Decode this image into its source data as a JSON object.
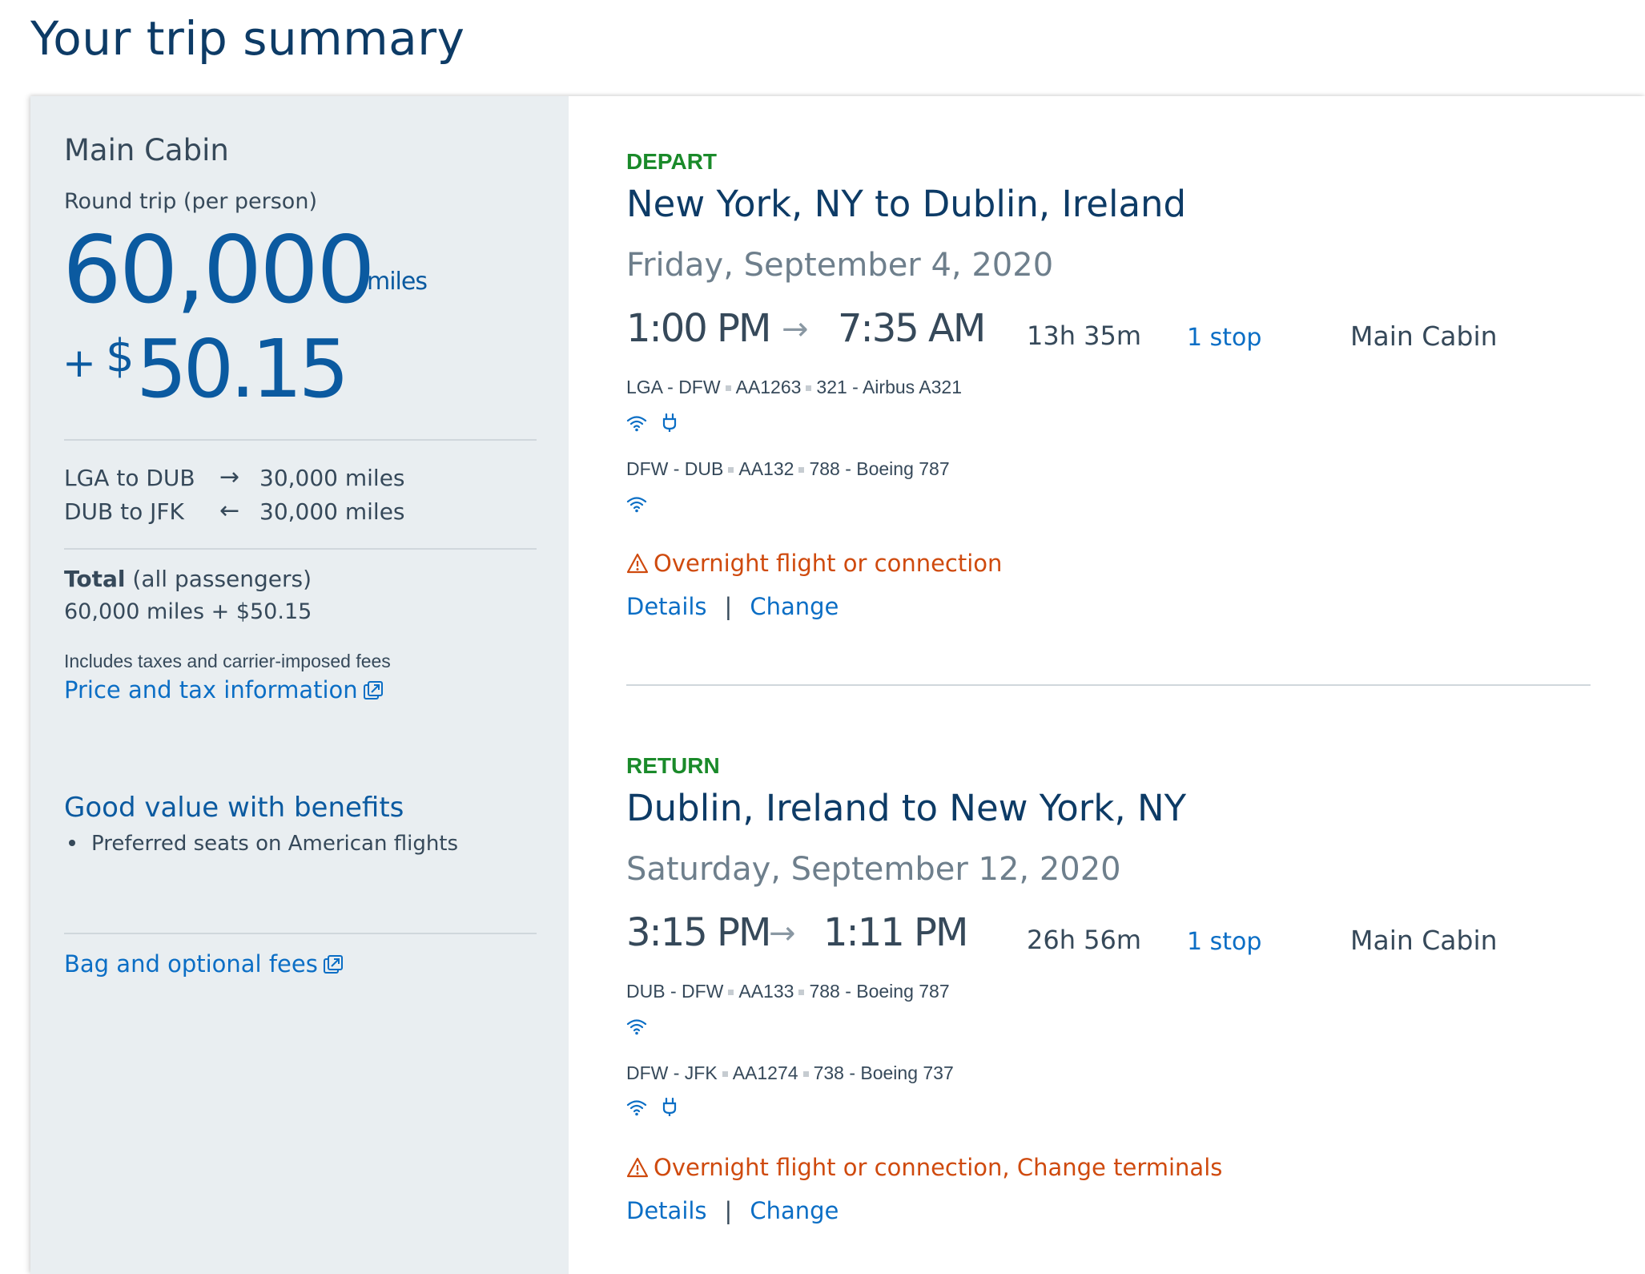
{
  "page_title": "Your trip summary",
  "sidebar": {
    "cabin": "Main Cabin",
    "trip_type": "Round trip (per person)",
    "miles": "60,000",
    "miles_unit": "miles",
    "plus": "+",
    "dollar_sign": "$",
    "cash": "50.15",
    "legs": [
      {
        "route": "LGA to DUB",
        "arrow": "→",
        "miles": "30,000 miles"
      },
      {
        "route": "DUB to JFK",
        "arrow": "←",
        "miles": "30,000 miles"
      }
    ],
    "total_label": "Total",
    "total_suffix": "(all passengers)",
    "total_value": "60,000 miles + $50.15",
    "includes_note": "Includes taxes and carrier-imposed fees",
    "price_tax_link": "Price and tax information",
    "benefits_title": "Good value with benefits",
    "benefits": [
      "Preferred seats on American flights"
    ],
    "bag_fees_link": "Bag and optional fees"
  },
  "segments": [
    {
      "label": "DEPART",
      "route": "New York, NY to Dublin, Ireland",
      "date": "Friday, September 4, 2020",
      "depart_time": "1:00 PM",
      "arrow": "→",
      "arrive_time": "7:35 AM",
      "duration": "13h 35m",
      "stops": "1 stop",
      "cabin": "Main Cabin",
      "flights": [
        {
          "route": "LGA - DFW",
          "flight": "AA1263",
          "aircraft": "321 - Airbus A321",
          "amenities": [
            "wifi-icon",
            "power-icon"
          ]
        },
        {
          "route": "DFW - DUB",
          "flight": "AA132",
          "aircraft": "788 - Boeing 787",
          "amenities": [
            "wifi-icon"
          ]
        }
      ],
      "warning": "Overnight flight or connection",
      "details_link": "Details",
      "separator": "|",
      "change_link": "Change"
    },
    {
      "label": "RETURN",
      "route": "Dublin, Ireland to New York, NY",
      "date": "Saturday, September 12, 2020",
      "depart_time": "3:15 PM",
      "arrow": "→",
      "arrive_time": "1:11 PM",
      "duration": "26h 56m",
      "stops": "1 stop",
      "cabin": "Main Cabin",
      "flights": [
        {
          "route": "DUB - DFW",
          "flight": "AA133",
          "aircraft": "788 - Boeing 787",
          "amenities": [
            "wifi-icon"
          ]
        },
        {
          "route": "DFW - JFK",
          "flight": "AA1274",
          "aircraft": "738 - Boeing 737",
          "amenities": [
            "wifi-icon",
            "power-icon"
          ]
        }
      ],
      "warning": "Overnight flight or connection, Change terminals",
      "details_link": "Details",
      "separator": "|",
      "change_link": "Change"
    }
  ],
  "colors": {
    "brand_blue": "#0b5aa0",
    "link_blue": "#0b6ec5",
    "segment_green": "#1a8a2a",
    "warning_orange": "#cf4a0e",
    "sidebar_bg": "#e9eef1"
  }
}
